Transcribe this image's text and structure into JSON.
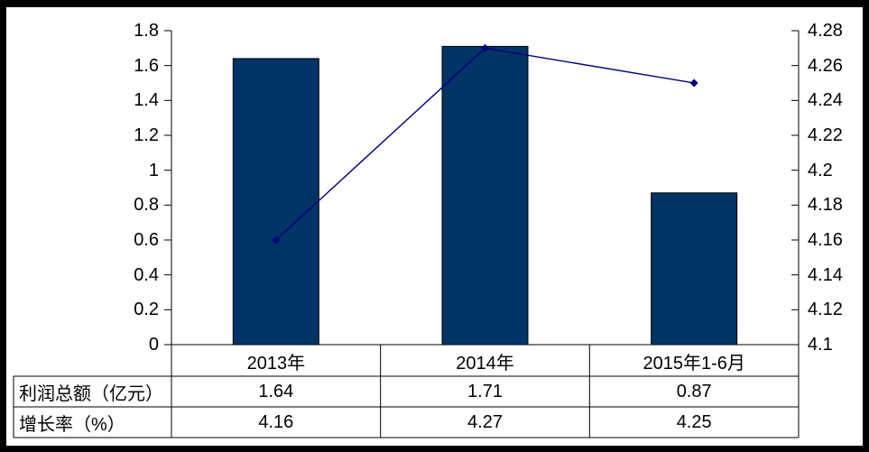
{
  "chart_data": {
    "type": "combo",
    "categories": [
      "2013年",
      "2014年",
      "2015年1-6月"
    ],
    "series": [
      {
        "name": "利润总额（亿元）",
        "type": "bar",
        "axis": "left",
        "color": "#003366",
        "values": [
          1.64,
          1.71,
          0.87
        ]
      },
      {
        "name": "增长率（%）",
        "type": "line",
        "axis": "right",
        "color": "#000080",
        "marker": "diamond",
        "values": [
          4.16,
          4.27,
          4.25
        ]
      }
    ],
    "left_axis": {
      "min": 0,
      "max": 1.8,
      "step": 0.2,
      "tick_labels": [
        "0",
        "0.2",
        "0.4",
        "0.6",
        "0.8",
        "1",
        "1.2",
        "1.4",
        "1.6",
        "1.8"
      ]
    },
    "right_axis": {
      "min": 4.1,
      "max": 4.28,
      "step": 0.02,
      "tick_labels": [
        "4.1",
        "4.12",
        "4.14",
        "4.16",
        "4.18",
        "4.2",
        "4.22",
        "4.24",
        "4.26",
        "4.28"
      ]
    },
    "data_table": {
      "column_headers": [
        "2013年",
        "2014年",
        "2015年1-6月"
      ],
      "rows": [
        {
          "label": "利润总额（亿元）",
          "values": [
            "1.64",
            "1.71",
            "0.87"
          ]
        },
        {
          "label": "增长率（%）",
          "values": [
            "4.16",
            "4.27",
            "4.25"
          ]
        }
      ]
    },
    "colors": {
      "bar": "#003366",
      "line": "#000080",
      "text": "#000000",
      "grid_lines": "#000000",
      "frame": "#000000",
      "background": "#ffffff"
    },
    "grid": false,
    "legend": null,
    "title": ""
  }
}
